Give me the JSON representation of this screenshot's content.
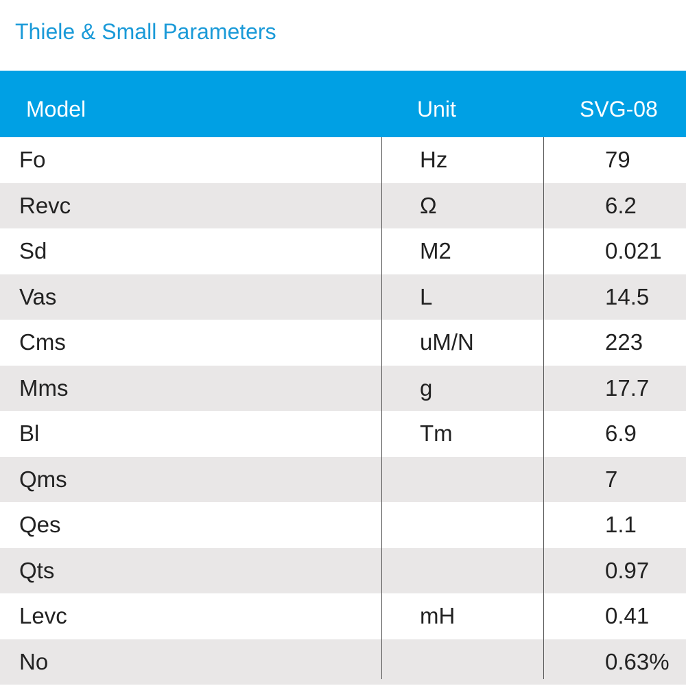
{
  "header": {
    "title": "Thiele & Small Parameters"
  },
  "table": {
    "columns": [
      "Model",
      "Unit",
      "SVG-08"
    ],
    "rows": [
      {
        "param": "Fo",
        "unit": "Hz",
        "value": "79"
      },
      {
        "param": "Revc",
        "unit": "Ω",
        "value": "6.2"
      },
      {
        "param": "Sd",
        "unit": "M2",
        "value": "0.021"
      },
      {
        "param": "Vas",
        "unit": "L",
        "value": "14.5"
      },
      {
        "param": "Cms",
        "unit": "uM/N",
        "value": "223"
      },
      {
        "param": "Mms",
        "unit": "g",
        "value": "17.7"
      },
      {
        "param": "Bl",
        "unit": "Tm",
        "value": "6.9"
      },
      {
        "param": "Qms",
        "value": "7"
      },
      {
        "param": "Qes",
        "value": "1.1"
      },
      {
        "param": "Qts",
        "value": "0.97"
      },
      {
        "param": "Levc",
        "unit": "mH",
        "value": "0.41"
      },
      {
        "param": "No",
        "value": "0.63%"
      }
    ]
  }
}
